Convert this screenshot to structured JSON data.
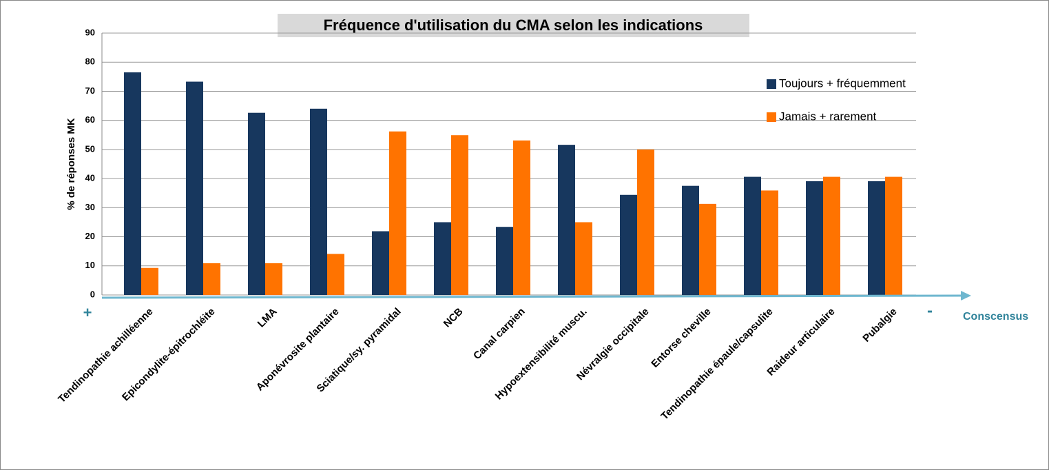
{
  "chart_data": {
    "type": "bar",
    "title": "Fréquence d'utilisation du CMA selon les indications",
    "y_label": "% de réponses MK",
    "categories": [
      "Tendinopathie achilléenne",
      "Epicondylite-épitrochléite",
      "LMA",
      "Aponévrosite plantaire",
      "Sciatique/sy. pyramidal",
      "NCB",
      "Canal carpien",
      "Hypoextensibilité muscu.",
      "Névralgie occipitale",
      "Entorse cheville",
      "Tendinopathie épaule/capsulite",
      "Raideur articulaire",
      "Pubalgie"
    ],
    "series": [
      {
        "name": "Toujours + fréquemment",
        "color": "#17375e",
        "values": [
          76.5,
          73.3,
          62.6,
          64,
          21.9,
          25,
          23.4,
          51.6,
          34.4,
          37.5,
          40.6,
          39.1,
          39.1
        ]
      },
      {
        "name": "Jamais + rarement",
        "color": "#ff7300",
        "values": [
          9.3,
          10.9,
          10.9,
          14.1,
          56.2,
          54.9,
          53.1,
          25,
          50,
          31.3,
          35.9,
          40.6,
          40.6
        ]
      }
    ],
    "ylim": [
      0,
      90
    ],
    "yticks": [
      0,
      10,
      20,
      30,
      40,
      50,
      60,
      70,
      80,
      90
    ],
    "grid": true,
    "legend": "right",
    "annotations": [
      "+",
      "-",
      "Conscensus"
    ]
  }
}
